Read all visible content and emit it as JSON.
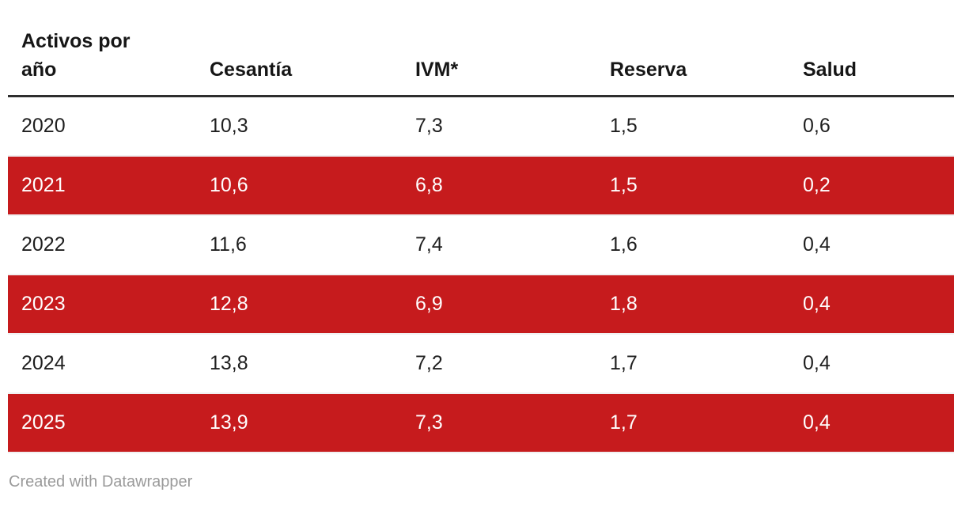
{
  "chart_data": {
    "type": "table",
    "title": "",
    "columns": [
      "Activos por año",
      "Cesantía",
      "IVM*",
      "Reserva",
      "Salud"
    ],
    "rows": [
      [
        "2020",
        10.3,
        7.3,
        1.5,
        0.6
      ],
      [
        "2021",
        10.6,
        6.8,
        1.5,
        0.2
      ],
      [
        "2022",
        11.6,
        7.4,
        1.6,
        0.4
      ],
      [
        "2023",
        12.8,
        6.9,
        1.8,
        0.4
      ],
      [
        "2024",
        13.8,
        7.2,
        1.7,
        0.4
      ],
      [
        "2025",
        13.9,
        7.3,
        1.7,
        0.4
      ]
    ],
    "layout_hints": {
      "zebra_striping": "even rows highlighted red with white text",
      "number_format": "decimal comma"
    }
  },
  "table": {
    "header": [
      "Activos por año",
      "Cesantía",
      "IVM*",
      "Reserva",
      "Salud"
    ],
    "rows": [
      [
        "2020",
        "10,3",
        "7,3",
        "1,5",
        "0,6"
      ],
      [
        "2021",
        "10,6",
        "6,8",
        "1,5",
        "0,2"
      ],
      [
        "2022",
        "11,6",
        "7,4",
        "1,6",
        "0,4"
      ],
      [
        "2023",
        "12,8",
        "6,9",
        "1,8",
        "0,4"
      ],
      [
        "2024",
        "13,8",
        "7,2",
        "1,7",
        "0,4"
      ],
      [
        "2025",
        "13,9",
        "7,3",
        "1,7",
        "0,4"
      ]
    ]
  },
  "footer": {
    "attribution": "Created with Datawrapper"
  },
  "colors": {
    "highlight_row_bg": "#c61b1d",
    "highlight_row_text": "#ffffff",
    "body_text": "#1f1f1f",
    "header_text": "#161616",
    "header_rule": "#2e2e2e",
    "row_separator": "#f1f1f2",
    "footer_text": "#9a9a9a",
    "background": "#ffffff"
  }
}
